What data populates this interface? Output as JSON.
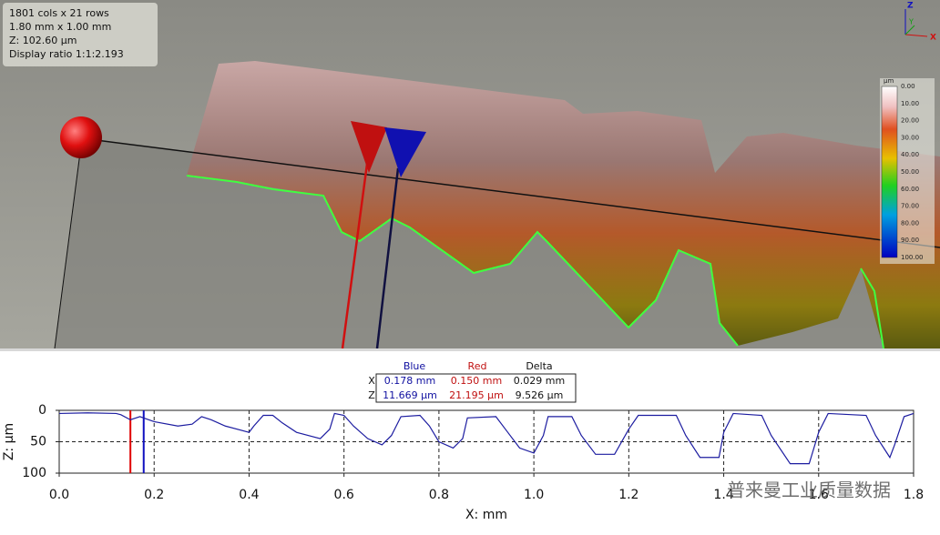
{
  "info": {
    "lines": [
      "1801 cols x 21 rows",
      "1.80 mm x 1.00 mm",
      "Z: 102.60 µm",
      "Display ratio 1:1:2.193"
    ]
  },
  "axes_gizmo": {
    "z": "Z",
    "y": "Y",
    "x": "X"
  },
  "colorbar": {
    "unit": "µm",
    "ticks": [
      "0.00",
      "10.00",
      "20.00",
      "30.00",
      "40.00",
      "50.00",
      "60.00",
      "70.00",
      "80.00",
      "90.00",
      "100.00"
    ]
  },
  "measure_table": {
    "headers": [
      "Blue",
      "Red",
      "Delta"
    ],
    "rows": [
      {
        "label": "X",
        "cells": [
          "0.178 mm",
          "0.150 mm",
          "0.029 mm"
        ]
      },
      {
        "label": "Z",
        "cells": [
          "11.669 µm",
          "21.195 µm",
          "9.526 µm"
        ]
      }
    ]
  },
  "watermark": "普来曼工业质量数据",
  "chart_data": {
    "type": "line",
    "x_label": "X:  mm",
    "y_label": "Z:  µm",
    "xlim": [
      0,
      1.8
    ],
    "ylim": [
      0,
      100
    ],
    "y_inverted": true,
    "xticks": [
      {
        "value": 0,
        "label": "0.0"
      },
      {
        "value": 0.2,
        "label": "0.2"
      },
      {
        "value": 0.4,
        "label": "0.4"
      },
      {
        "value": 0.6,
        "label": "0.6"
      },
      {
        "value": 0.8,
        "label": "0.8"
      },
      {
        "value": 1.0,
        "label": "1.0"
      },
      {
        "value": 1.2,
        "label": "1.2"
      },
      {
        "value": 1.4,
        "label": "1.4"
      },
      {
        "value": 1.6,
        "label": "1.6"
      },
      {
        "value": 1.8,
        "label": "1.8"
      }
    ],
    "yticks": [
      0,
      50,
      100
    ],
    "grid": true,
    "series": [
      {
        "color": "#1c1ca0",
        "x": [
          0,
          0.06,
          0.12,
          0.13,
          0.15,
          0.17,
          0.2,
          0.25,
          0.28,
          0.3,
          0.32,
          0.35,
          0.4,
          0.41,
          0.43,
          0.45,
          0.47,
          0.5,
          0.55,
          0.57,
          0.58,
          0.6,
          0.62,
          0.65,
          0.68,
          0.7,
          0.72,
          0.76,
          0.78,
          0.8,
          0.83,
          0.85,
          0.86,
          0.92,
          0.94,
          0.97,
          1.0,
          1.02,
          1.03,
          1.08,
          1.1,
          1.13,
          1.17,
          1.2,
          1.22,
          1.3,
          1.32,
          1.35,
          1.39,
          1.4,
          1.42,
          1.48,
          1.5,
          1.54,
          1.58,
          1.6,
          1.62,
          1.7,
          1.72,
          1.75,
          1.76,
          1.78,
          1.8
        ],
        "values": [
          5,
          4,
          5,
          7,
          15,
          10,
          18,
          25,
          22,
          10,
          15,
          25,
          35,
          25,
          8,
          8,
          20,
          35,
          45,
          30,
          5,
          8,
          25,
          45,
          55,
          40,
          10,
          8,
          25,
          50,
          60,
          45,
          12,
          10,
          30,
          60,
          68,
          40,
          10,
          10,
          40,
          70,
          70,
          30,
          8,
          8,
          40,
          75,
          75,
          35,
          5,
          8,
          40,
          85,
          85,
          35,
          5,
          8,
          40,
          75,
          55,
          10,
          5
        ]
      }
    ],
    "cursors": [
      {
        "color": "#e00000",
        "x": 0.15
      },
      {
        "color": "#1010c0",
        "x": 0.178
      }
    ]
  }
}
